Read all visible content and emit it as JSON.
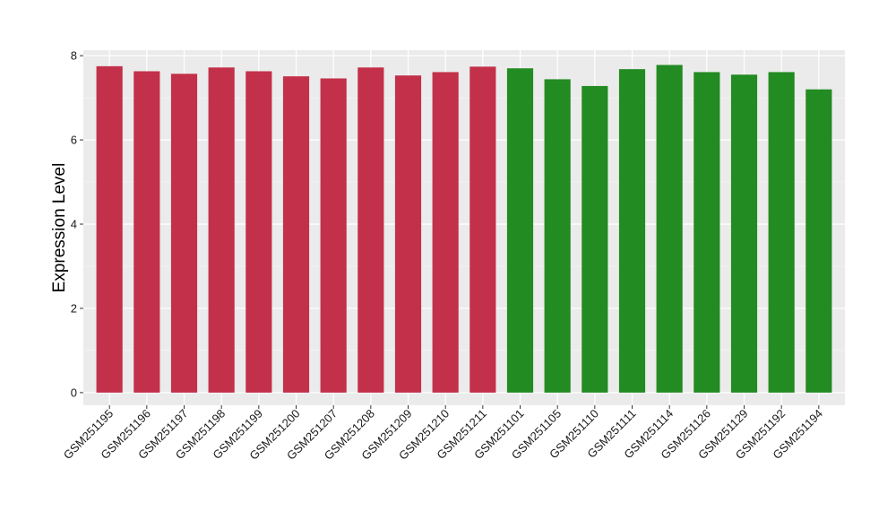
{
  "chart_data": {
    "type": "bar",
    "title": "",
    "xlabel": "",
    "ylabel": "Expression Level",
    "ylim": [
      -0.3,
      8.13
    ],
    "yticks": [
      0,
      2,
      4,
      6,
      8
    ],
    "yticks_labels": [
      "0",
      "2",
      "4",
      "6",
      "8"
    ],
    "grid": true,
    "legend": "none",
    "categories": [
      "GSM251195",
      "GSM251196",
      "GSM251197",
      "GSM251198",
      "GSM251199",
      "GSM251200",
      "GSM251207",
      "GSM251208",
      "GSM251209",
      "GSM251210",
      "GSM251211",
      "GSM251101",
      "GSM251105",
      "GSM251110",
      "GSM251111",
      "GSM251114",
      "GSM251126",
      "GSM251129",
      "GSM251192",
      "GSM251194"
    ],
    "values": [
      7.75,
      7.63,
      7.57,
      7.72,
      7.63,
      7.51,
      7.46,
      7.72,
      7.53,
      7.61,
      7.74,
      7.7,
      7.44,
      7.28,
      7.68,
      7.78,
      7.61,
      7.55,
      7.61,
      7.2
    ],
    "bar_colors": [
      "#c3304a",
      "#c3304a",
      "#c3304a",
      "#c3304a",
      "#c3304a",
      "#c3304a",
      "#c3304a",
      "#c3304a",
      "#c3304a",
      "#c3304a",
      "#c3304a",
      "#228b22",
      "#228b22",
      "#228b22",
      "#228b22",
      "#228b22",
      "#228b22",
      "#228b22",
      "#228b22",
      "#228b22"
    ],
    "colors": {
      "panel_background": "#ebebeb",
      "grid_major": "#ffffff",
      "grid_minor": "#f4f4f4",
      "group_a": "#c3304a",
      "group_b": "#228b22"
    }
  }
}
